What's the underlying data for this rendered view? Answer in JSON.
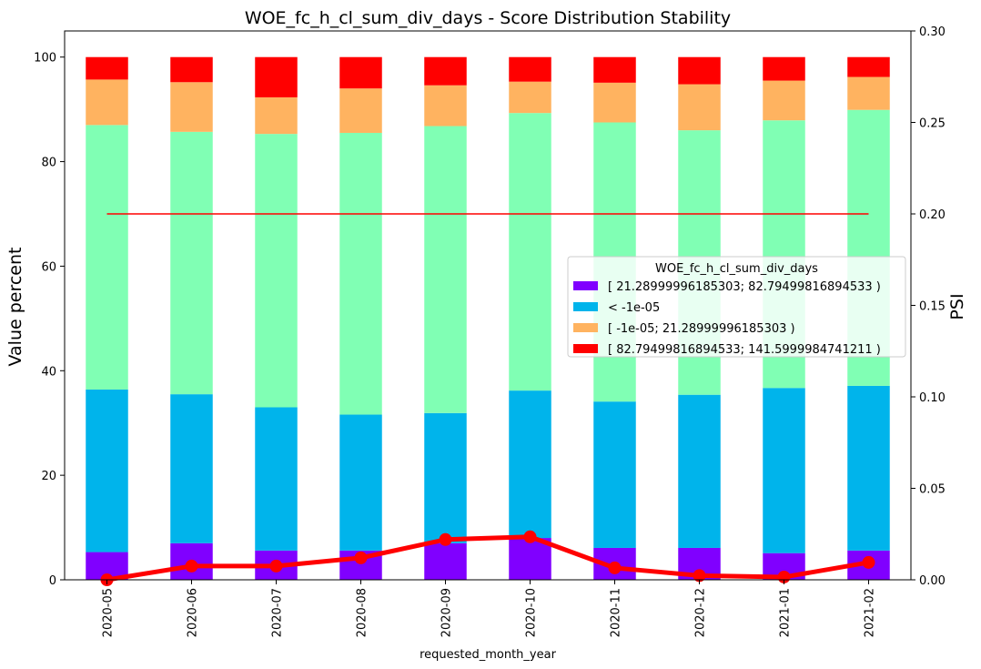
{
  "chart_data": {
    "type": "bar",
    "title": "WOE_fc_h_cl_sum_div_days  - Score Distribution Stability",
    "xlabel": "requested_month_year",
    "ylabel": "Value percent",
    "y2label": "PSI",
    "ylim": [
      0,
      105
    ],
    "y2lim": [
      0,
      0.3
    ],
    "yticks": [
      "0",
      "20",
      "40",
      "60",
      "80",
      "100"
    ],
    "y2ticks": [
      "0.00",
      "0.05",
      "0.10",
      "0.15",
      "0.20",
      "0.25",
      "0.30"
    ],
    "grid": false,
    "stacked": true,
    "categories": [
      "2020-05",
      "2020-06",
      "2020-07",
      "2020-08",
      "2020-09",
      "2020-10",
      "2020-11",
      "2020-12",
      "2021-01",
      "2021-02"
    ],
    "series": [
      {
        "name": "[ 21.28999996185303; 82.79499816894533 )",
        "color": "#8000ff",
        "values": [
          5.3,
          7.0,
          5.6,
          5.6,
          7.0,
          8.0,
          6.1,
          6.1,
          5.1,
          5.6
        ]
      },
      {
        "name": "< -1e-05",
        "color": "#00b4eb",
        "values": [
          31.1,
          28.5,
          27.4,
          26.0,
          24.9,
          28.2,
          28.0,
          29.3,
          31.6,
          31.5
        ]
      },
      {
        "name": "[ -1e-05; 21.28999996185303 )",
        "color": "#80ffb4",
        "values": [
          50.6,
          50.2,
          52.3,
          53.9,
          54.9,
          53.1,
          53.4,
          50.6,
          51.2,
          52.8
        ]
      },
      {
        "name": "[ -1e-05; 21.28999996185303 )",
        "color": "#ffb360",
        "values": [
          8.7,
          9.5,
          7.0,
          8.5,
          7.8,
          6.0,
          7.6,
          8.8,
          7.6,
          6.3
        ]
      },
      {
        "name": "[ 82.79499816894533; 141.5999984741211 )",
        "color": "#ff0000",
        "values": [
          4.3,
          4.8,
          7.7,
          6.0,
          5.4,
          4.7,
          4.9,
          5.2,
          4.5,
          3.8
        ]
      }
    ],
    "legend": {
      "title": "WOE_fc_h_cl_sum_div_days",
      "placement": "center-right",
      "entries": [
        {
          "label": "[ 21.28999996185303; 82.79499816894533 )",
          "color": "#8000ff"
        },
        {
          "label": "< -1e-05",
          "color": "#00b4eb"
        },
        {
          "label": "[ -1e-05; 21.28999996185303 )",
          "color": "#ffb360"
        },
        {
          "label": "[ 82.79499816894533; 141.5999984741211 )",
          "color": "#ff0000"
        }
      ]
    },
    "psi": {
      "color": "#ff0000",
      "values": [
        0.0,
        0.0075,
        0.0075,
        0.012,
        0.022,
        0.0235,
        0.0065,
        0.0023,
        0.0015,
        0.0095
      ]
    },
    "threshold": {
      "value": 0.2,
      "color": "#ff0000"
    }
  }
}
